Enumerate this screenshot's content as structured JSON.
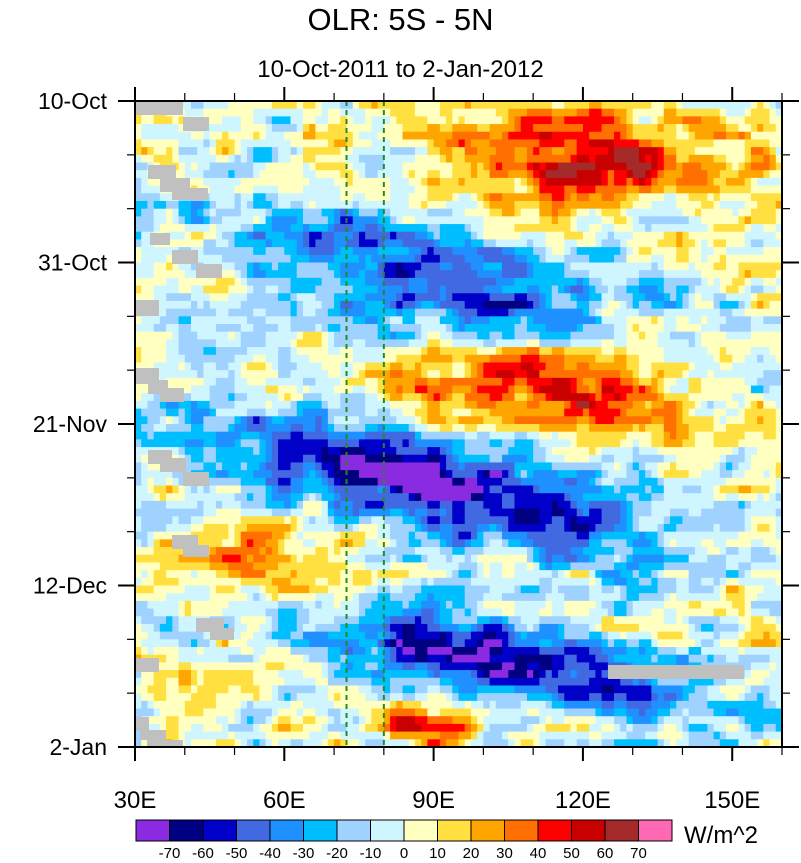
{
  "chart_data": {
    "type": "heatmap",
    "title": "OLR: 5S - 5N",
    "subtitle": "10-Oct-2011 to 2-Jan-2012",
    "x_axis": {
      "label": "",
      "range": [
        30,
        160
      ],
      "ticks": [
        30,
        60,
        90,
        120,
        150
      ],
      "tick_labels": [
        "30E",
        "60E",
        "90E",
        "120E",
        "150E"
      ]
    },
    "y_axis": {
      "label": "",
      "range_days_since_start": [
        0,
        84
      ],
      "ticks": [
        0,
        21,
        42,
        63,
        84
      ],
      "tick_labels": [
        "10-Oct",
        "31-Oct",
        "21-Nov",
        "12-Dec",
        "2-Jan"
      ],
      "orientation": "time increases downward"
    },
    "reference_lines": [
      {
        "longitude": 72.5,
        "style": "dashed",
        "color": "#228b22"
      },
      {
        "longitude": 80,
        "style": "dashed",
        "color": "#228b22"
      }
    ],
    "colorbar": {
      "units": "W/m^2",
      "levels": [
        -70,
        -60,
        -50,
        -40,
        -30,
        -20,
        -10,
        0,
        10,
        20,
        30,
        40,
        50,
        60,
        70
      ],
      "level_labels": [
        "-70",
        "-60",
        "-50",
        "-40",
        "-30",
        "-20",
        "-10",
        "0",
        "10",
        "20",
        "30",
        "40",
        "50",
        "60",
        "70"
      ],
      "colors": [
        "#8a2be2",
        "#000080",
        "#0000c8",
        "#4169e1",
        "#1e90ff",
        "#00bfff",
        "#a0d2ff",
        "#cff5ff",
        "#ffffc0",
        "#ffe040",
        "#ffa500",
        "#ff7000",
        "#ff0000",
        "#c80000",
        "#a52a2a",
        "#ff69b4"
      ],
      "missing_color": "#c0c0c0"
    },
    "features": [
      {
        "description": "suppressed convection (positive anomalies)",
        "day_start": 0,
        "day_end": 14,
        "lon_start": 80,
        "lon_end": 160,
        "peak": 55
      },
      {
        "description": "enhanced convection band propagating east",
        "day_start": 10,
        "day_end": 36,
        "lon_start": 50,
        "lon_end": 130,
        "peak": -55
      },
      {
        "description": "suppressed convection",
        "day_start": 28,
        "day_end": 46,
        "lon_start": 75,
        "lon_end": 150,
        "peak": 50
      },
      {
        "description": "strong enhanced convection event propagating east",
        "day_start": 38,
        "day_end": 62,
        "lon_start": 45,
        "lon_end": 135,
        "peak": -75
      },
      {
        "description": "suppressed convection",
        "day_start": 52,
        "day_end": 66,
        "lon_start": 30,
        "lon_end": 80,
        "peak": 35
      },
      {
        "description": "enhanced convection event",
        "day_start": 64,
        "day_end": 82,
        "lon_start": 65,
        "lon_end": 145,
        "peak": -72
      },
      {
        "description": "suppressed convection",
        "day_start": 78,
        "day_end": 84,
        "lon_start": 75,
        "lon_end": 100,
        "peak": 50
      }
    ]
  }
}
